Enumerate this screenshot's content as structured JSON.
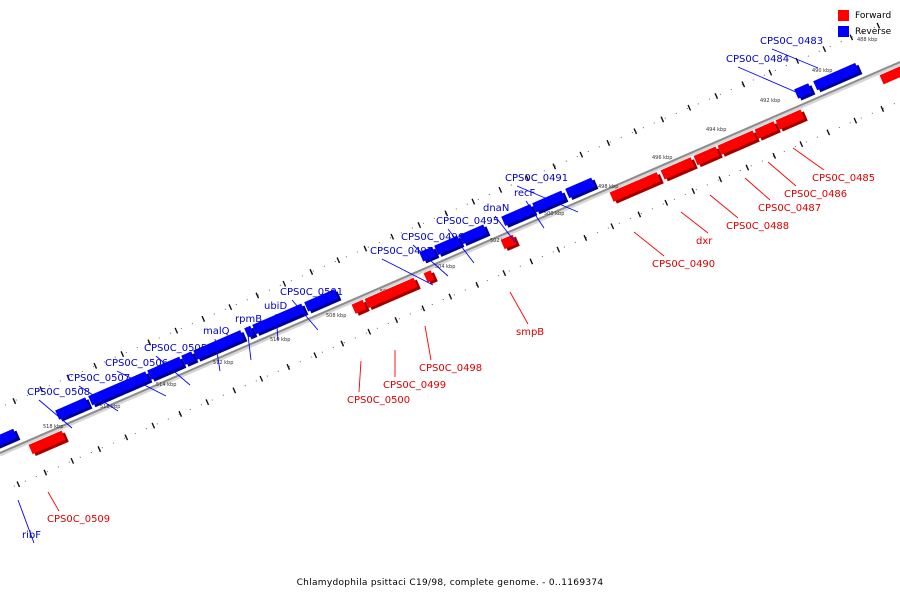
{
  "legend": {
    "items": [
      {
        "label": "Forward",
        "color": "#ff0000"
      },
      {
        "label": "Reverse",
        "color": "#0000ff"
      }
    ]
  },
  "caption": "Chlamydophila psittaci C19/98, complete genome. - 0..1169374",
  "colors": {
    "forward": "#ff0000",
    "reverse": "#0000ff",
    "backbone": "#8c8c8c"
  },
  "scale_labels": [
    "488 kbp",
    "490 kbp",
    "492 kbp",
    "494 kbp",
    "496 kbp",
    "498 kbp",
    "500 kbp",
    "502 kbp",
    "504 kbp",
    "506 kbp",
    "508 kbp",
    "510 kbp",
    "512 kbp",
    "514 kbp",
    "516 kbp",
    "518 kbp"
  ],
  "genes": [
    {
      "name": "CPS0C_0483",
      "strand": "reverse"
    },
    {
      "name": "CPS0C_0484",
      "strand": "reverse"
    },
    {
      "name": "CPS0C_0485",
      "strand": "forward"
    },
    {
      "name": "CPS0C_0486",
      "strand": "forward"
    },
    {
      "name": "CPS0C_0487",
      "strand": "forward"
    },
    {
      "name": "CPS0C_0488",
      "strand": "forward"
    },
    {
      "name": "dxr",
      "strand": "forward"
    },
    {
      "name": "CPS0C_0490",
      "strand": "forward"
    },
    {
      "name": "CPS0C_0491",
      "strand": "reverse"
    },
    {
      "name": "recF",
      "strand": "reverse"
    },
    {
      "name": "dnaN",
      "strand": "reverse"
    },
    {
      "name": "CPS0C_0495",
      "strand": "reverse"
    },
    {
      "name": "CPS0C_0496",
      "strand": "reverse"
    },
    {
      "name": "CPS0C_0497",
      "strand": "reverse"
    },
    {
      "name": "smpB",
      "strand": "forward"
    },
    {
      "name": "CPS0C_0498",
      "strand": "forward"
    },
    {
      "name": "CPS0C_0499",
      "strand": "forward"
    },
    {
      "name": "CPS0C_0500",
      "strand": "forward"
    },
    {
      "name": "CPS0C_0501",
      "strand": "reverse"
    },
    {
      "name": "ubiD",
      "strand": "reverse"
    },
    {
      "name": "rpmB",
      "strand": "reverse"
    },
    {
      "name": "malQ",
      "strand": "reverse"
    },
    {
      "name": "CPS0C_0505",
      "strand": "reverse"
    },
    {
      "name": "CPS0C_0506",
      "strand": "reverse"
    },
    {
      "name": "CPS0C_0507",
      "strand": "reverse"
    },
    {
      "name": "CPS0C_0508",
      "strand": "reverse"
    },
    {
      "name": "CPS0C_0509",
      "strand": "forward"
    },
    {
      "name": "ribF",
      "strand": "reverse"
    }
  ]
}
